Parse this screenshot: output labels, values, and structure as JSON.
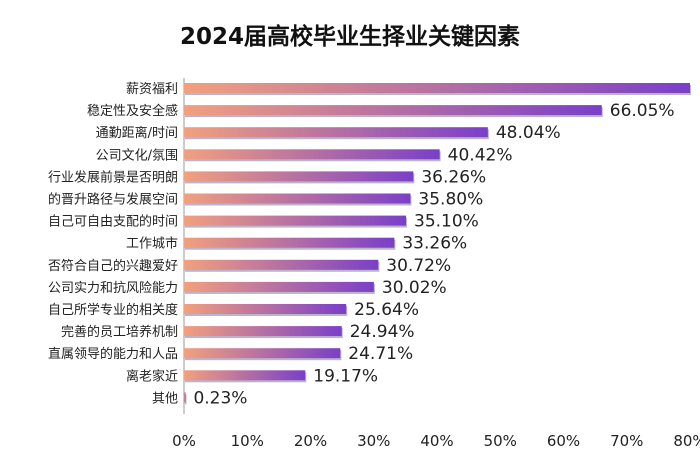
{
  "chart_data": {
    "type": "bar",
    "orientation": "horizontal",
    "title": "2024届高校毕业生择业关键因素",
    "categories": [
      "薪资福利",
      "稳定性及安全感",
      "通勤距离/时间",
      "公司文化/氛围",
      "行业发展前景是否明朗",
      "的晋升路径与发展空间",
      "自己可自由支配的时间",
      "工作城市",
      "否符合自己的兴趣爱好",
      "公司实力和抗风险能力",
      "自己所学专业的相关度",
      "完善的员工培养机制",
      "直属领导的能力和人品",
      "离老家近",
      "其他"
    ],
    "values": [
      80.5,
      66.05,
      48.04,
      40.42,
      36.26,
      35.8,
      35.1,
      33.26,
      30.72,
      30.02,
      25.64,
      24.94,
      24.71,
      19.17,
      0.23
    ],
    "value_labels": [
      "",
      "66.05%",
      "48.04%",
      "40.42%",
      "36.26%",
      "35.80%",
      "35.10%",
      "33.26%",
      "30.72%",
      "30.02%",
      "25.64%",
      "24.94%",
      "24.71%",
      "19.17%",
      "0.23%"
    ],
    "x_ticks": [
      "0%",
      "10%",
      "20%",
      "30%",
      "40%",
      "50%",
      "60%",
      "70%",
      "80%"
    ],
    "xlim": [
      0,
      80
    ],
    "colors": {
      "bar_start": "#f2a07e",
      "bar_end": "#7a3fc8",
      "bar_shadow": "#3a2a6a",
      "axis": "#9a9a9a"
    }
  }
}
